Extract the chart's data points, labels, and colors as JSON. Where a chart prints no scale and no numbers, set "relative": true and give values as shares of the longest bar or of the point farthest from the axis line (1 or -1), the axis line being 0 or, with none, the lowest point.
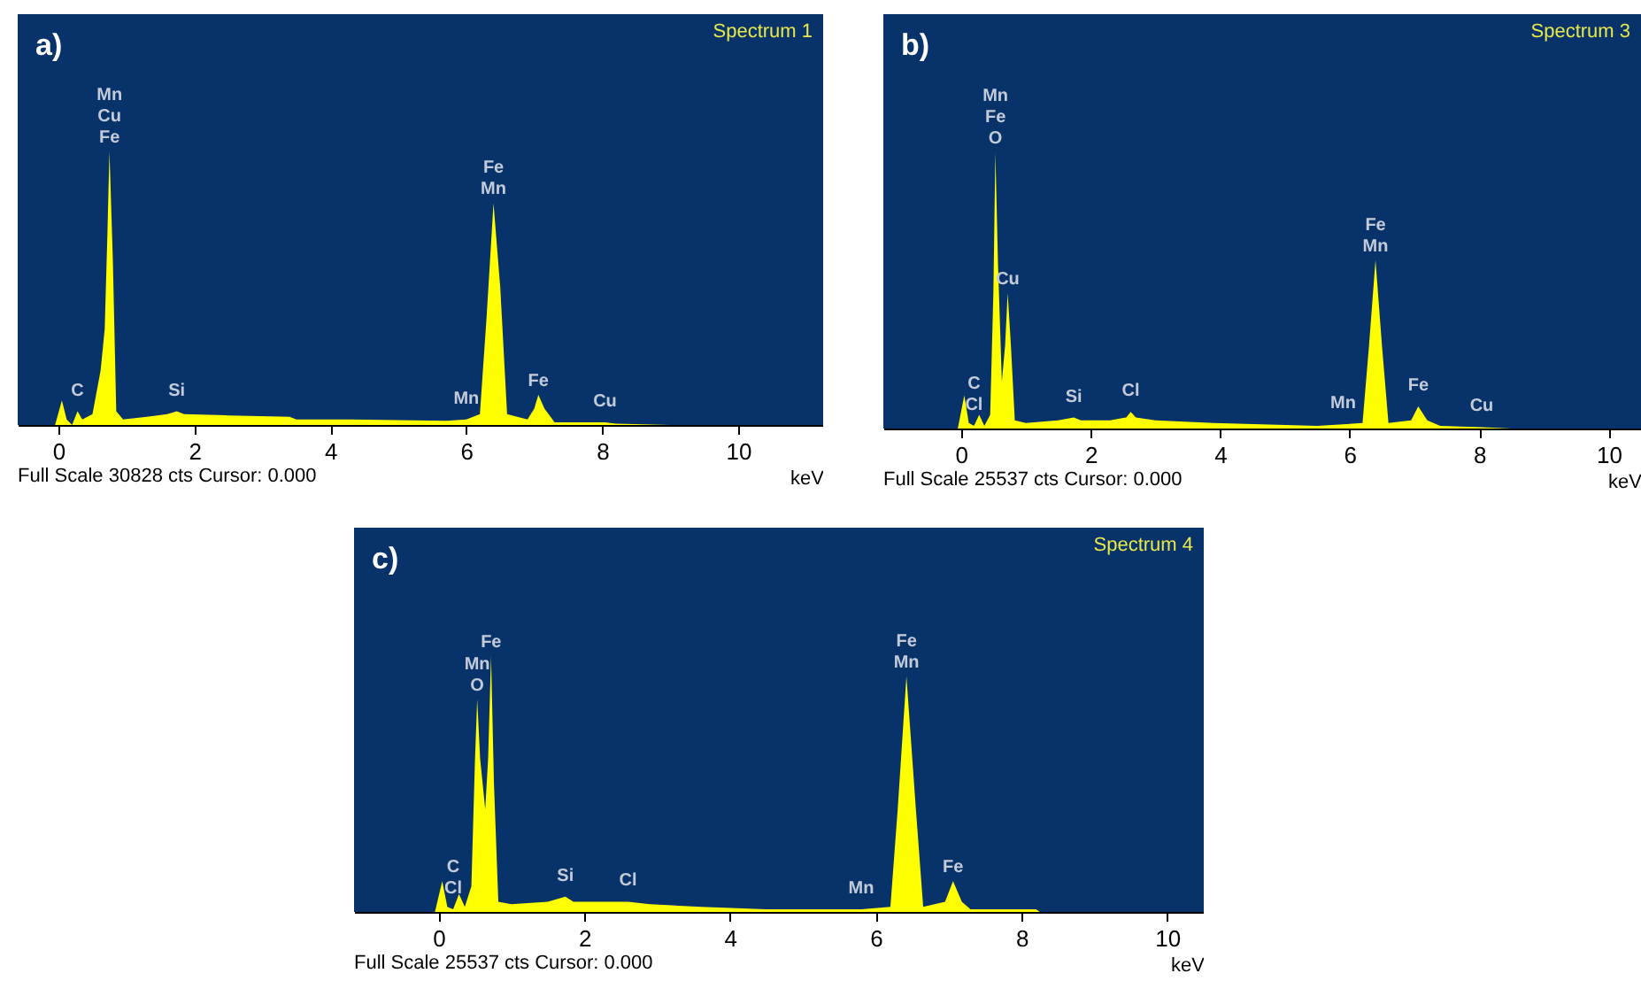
{
  "chart_data": [
    {
      "type": "area",
      "title": "Spectrum 1",
      "xlabel": "keV",
      "relative": true,
      "xlim": [
        -0.6,
        11.25
      ],
      "xticks": [
        0,
        2,
        4,
        6,
        8,
        10
      ],
      "x": [
        -0.05,
        0.05,
        0.12,
        0.2,
        0.28,
        0.35,
        0.5,
        0.62,
        0.68,
        0.72,
        0.75,
        0.8,
        0.85,
        0.95,
        1.3,
        1.6,
        1.74,
        1.85,
        2.5,
        3.4,
        3.5,
        4.3,
        5.7,
        6.0,
        6.2,
        6.3,
        6.4,
        6.5,
        6.6,
        6.9,
        7.0,
        7.06,
        7.15,
        7.3,
        7.8,
        8.04,
        8.2,
        9
      ],
      "series": [
        {
          "color": "#ffff00",
          "values": [
            0,
            0.09,
            0.02,
            0,
            0.05,
            0.02,
            0.04,
            0.2,
            0.35,
            0.7,
            1,
            0.6,
            0.05,
            0.02,
            0.03,
            0.04,
            0.05,
            0.04,
            0.035,
            0.03,
            0.02,
            0.02,
            0.015,
            0.02,
            0.04,
            0.4,
            0.81,
            0.5,
            0.04,
            0.02,
            0.06,
            0.11,
            0.06,
            0.01,
            0.01,
            0.01,
            0.005,
            0
          ]
        }
      ],
      "annotations": [
        "a)",
        "Full Scale 30828 cts Cursor: 0.000",
        {
          "text": "Fe",
          "x": 0.75,
          "y": 1
        },
        {
          "text": "Cu",
          "x": 0.75,
          "y": 1
        },
        {
          "text": "Mn",
          "x": 0.75,
          "y": 1
        },
        {
          "text": "Mn",
          "x": 6.4,
          "y": 0.81
        },
        {
          "text": "Fe",
          "x": 6.4,
          "y": 0.81
        },
        {
          "text": "C",
          "x": 0.28,
          "y": 0.05
        },
        {
          "text": "Si",
          "x": 1.74,
          "y": 0.05
        },
        {
          "text": "Mn",
          "x": 6.0,
          "y": 0.02
        },
        {
          "text": "Fe",
          "x": 7.06,
          "y": 0.11
        },
        {
          "text": "Cu",
          "x": 8.04,
          "y": 0.01
        }
      ]
    },
    {
      "type": "area",
      "title": "Spectrum 3",
      "xlabel": "keV",
      "relative": true,
      "xlim": [
        -1.2,
        10.5
      ],
      "xticks": [
        0,
        2,
        4,
        6,
        8,
        10
      ],
      "x": [
        -0.05,
        0.05,
        0.12,
        0.2,
        0.28,
        0.36,
        0.45,
        0.5,
        0.53,
        0.57,
        0.63,
        0.68,
        0.72,
        0.77,
        0.83,
        1.0,
        1.5,
        1.74,
        1.85,
        2.3,
        2.55,
        2.62,
        2.7,
        3.0,
        3.9,
        5.5,
        5.9,
        6.2,
        6.3,
        6.4,
        6.5,
        6.6,
        6.95,
        7.06,
        7.2,
        7.4,
        8.04,
        8.5
      ],
      "series": [
        {
          "color": "#ffff00",
          "values": [
            0,
            0.12,
            0.02,
            0.01,
            0.05,
            0.01,
            0.05,
            0.5,
            1,
            0.6,
            0.17,
            0.3,
            0.49,
            0.3,
            0.03,
            0.02,
            0.03,
            0.04,
            0.03,
            0.03,
            0.04,
            0.06,
            0.04,
            0.03,
            0.02,
            0.01,
            0.015,
            0.02,
            0.3,
            0.61,
            0.3,
            0.02,
            0.03,
            0.08,
            0.03,
            0.01,
            0.005,
            0
          ]
        }
      ],
      "annotations": [
        "b)",
        "Full Scale 25537 cts Cursor: 0.000",
        {
          "text": "O",
          "x": 0.53,
          "y": 1
        },
        {
          "text": "Fe",
          "x": 0.53,
          "y": 1
        },
        {
          "text": "Mn",
          "x": 0.53,
          "y": 1
        },
        {
          "text": "Cu",
          "x": 0.72,
          "y": 0.49
        },
        {
          "text": "Cl",
          "x": 0.2,
          "y": 0.01
        },
        {
          "text": "C",
          "x": 0.2,
          "y": 0.01
        },
        {
          "text": "Si",
          "x": 1.74,
          "y": 0.04
        },
        {
          "text": "Cl",
          "x": 2.62,
          "y": 0.06
        },
        {
          "text": "Mn",
          "x": 5.9,
          "y": 0.015
        },
        {
          "text": "Mn",
          "x": 6.4,
          "y": 0.61
        },
        {
          "text": "Fe",
          "x": 6.4,
          "y": 0.61
        },
        {
          "text": "Fe",
          "x": 7.06,
          "y": 0.08
        },
        {
          "text": "Cu",
          "x": 8.04,
          "y": 0.005
        }
      ]
    },
    {
      "type": "area",
      "title": "Spectrum 4",
      "xlabel": "keV",
      "relative": true,
      "xlim": [
        -1.16,
        10.5
      ],
      "xticks": [
        0,
        2,
        4,
        6,
        8,
        10
      ],
      "x": [
        -0.05,
        0.05,
        0.12,
        0.2,
        0.28,
        0.36,
        0.45,
        0.5,
        0.53,
        0.57,
        0.64,
        0.68,
        0.72,
        0.76,
        0.82,
        1.0,
        1.5,
        1.74,
        1.85,
        2.6,
        2.9,
        3.6,
        4.5,
        5.8,
        6.2,
        6.3,
        6.42,
        6.55,
        6.65,
        6.95,
        7.06,
        7.18,
        7.3,
        8.2,
        8.25
      ],
      "series": [
        {
          "color": "#ffff00",
          "values": [
            0,
            0.12,
            0.02,
            0.01,
            0.07,
            0.02,
            0.1,
            0.6,
            0.83,
            0.6,
            0.4,
            0.6,
            1,
            0.5,
            0.04,
            0.03,
            0.04,
            0.06,
            0.04,
            0.04,
            0.03,
            0.02,
            0.01,
            0.01,
            0.02,
            0.4,
            0.92,
            0.4,
            0.02,
            0.04,
            0.12,
            0.04,
            0.01,
            0.01,
            0
          ]
        }
      ],
      "annotations": [
        "c)",
        "Full Scale 25537 cts Cursor: 0.000",
        {
          "text": "Fe",
          "x": 0.72,
          "y": 1
        },
        {
          "text": "O",
          "x": 0.53,
          "y": 0.83
        },
        {
          "text": "Mn",
          "x": 0.53,
          "y": 0.83
        },
        {
          "text": "Cl",
          "x": 0.2,
          "y": 0.01
        },
        {
          "text": "C",
          "x": 0.2,
          "y": 0.01
        },
        {
          "text": "Si",
          "x": 1.74,
          "y": 0.06
        },
        {
          "text": "Cl",
          "x": 2.6,
          "y": 0.04
        },
        {
          "text": "Mn",
          "x": 5.8,
          "y": 0.01
        },
        {
          "text": "Mn",
          "x": 6.42,
          "y": 0.92
        },
        {
          "text": "Fe",
          "x": 6.42,
          "y": 0.92
        },
        {
          "text": "Fe",
          "x": 7.06,
          "y": 0.12
        }
      ]
    }
  ]
}
